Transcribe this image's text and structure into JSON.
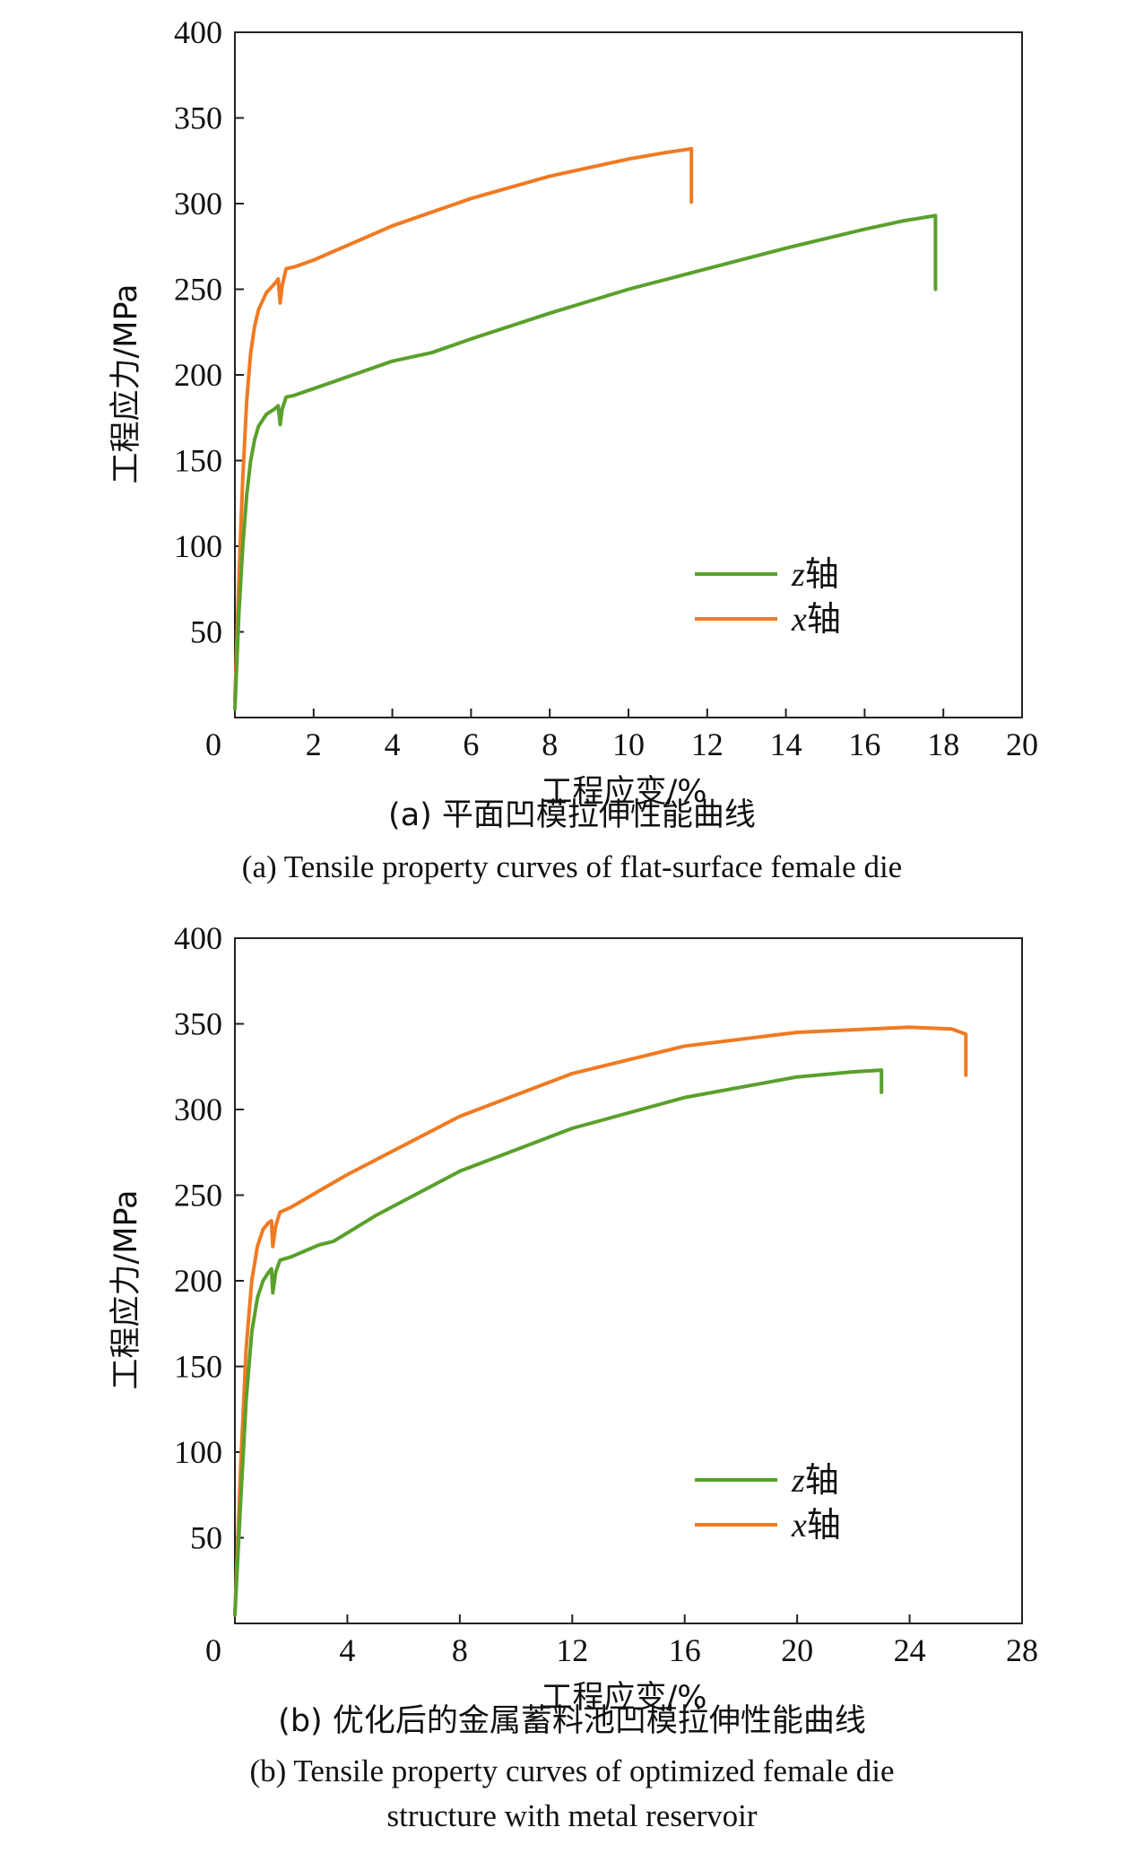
{
  "chart_data": [
    {
      "type": "line",
      "ylabel": "工程应力/MPa",
      "xlabel": "工程应变/%",
      "caption_zh": "(a) 平面凹模拉伸性能曲线",
      "caption_en": "(a) Tensile property curves of flat-surface female die",
      "xlim": [
        0,
        20
      ],
      "ylim": [
        0,
        400
      ],
      "xticks": [
        "0",
        "2",
        "4",
        "6",
        "8",
        "10",
        "12",
        "14",
        "16",
        "18",
        "20"
      ],
      "yticks": [
        "50",
        "100",
        "150",
        "200",
        "250",
        "300",
        "350",
        "400"
      ],
      "grid": false,
      "legend_position": "lower-right",
      "series": [
        {
          "name": "z轴",
          "axis_symbol": "z",
          "axis_suffix": "轴",
          "color": "#5aa02c",
          "points": [
            [
              0.0,
              5
            ],
            [
              0.1,
              60
            ],
            [
              0.2,
              100
            ],
            [
              0.3,
              130
            ],
            [
              0.4,
              150
            ],
            [
              0.5,
              162
            ],
            [
              0.6,
              170
            ],
            [
              0.8,
              177
            ],
            [
              1.0,
              180
            ],
            [
              1.1,
              182
            ],
            [
              1.15,
              171
            ],
            [
              1.2,
              180
            ],
            [
              1.3,
              187
            ],
            [
              1.5,
              188
            ],
            [
              2.0,
              192
            ],
            [
              3.0,
              200
            ],
            [
              4.0,
              208
            ],
            [
              5.0,
              213
            ],
            [
              6.0,
              221
            ],
            [
              8.0,
              236
            ],
            [
              10.0,
              250
            ],
            [
              12.0,
              262
            ],
            [
              14.0,
              274
            ],
            [
              16.0,
              285
            ],
            [
              17.0,
              290
            ],
            [
              17.8,
              293
            ],
            [
              17.8,
              250
            ]
          ]
        },
        {
          "name": "x轴",
          "axis_symbol": "x",
          "axis_suffix": "轴",
          "color": "#f07a22",
          "points": [
            [
              0.0,
              10
            ],
            [
              0.1,
              80
            ],
            [
              0.2,
              140
            ],
            [
              0.3,
              185
            ],
            [
              0.4,
              213
            ],
            [
              0.5,
              228
            ],
            [
              0.6,
              238
            ],
            [
              0.8,
              248
            ],
            [
              1.0,
              253
            ],
            [
              1.1,
              256
            ],
            [
              1.15,
              242
            ],
            [
              1.2,
              252
            ],
            [
              1.3,
              262
            ],
            [
              1.5,
              263
            ],
            [
              2.0,
              267
            ],
            [
              3.0,
              277
            ],
            [
              4.0,
              287
            ],
            [
              6.0,
              303
            ],
            [
              8.0,
              316
            ],
            [
              10.0,
              326
            ],
            [
              11.0,
              330
            ],
            [
              11.6,
              332
            ],
            [
              11.6,
              301
            ]
          ]
        }
      ]
    },
    {
      "type": "line",
      "ylabel": "工程应力/MPa",
      "xlabel": "工程应变/%",
      "caption_zh": "(b) 优化后的金属蓄料池凹模拉伸性能曲线",
      "caption_en_lines": [
        "(b) Tensile property curves of optimized female die",
        "structure with metal reservoir"
      ],
      "xlim": [
        0,
        28
      ],
      "ylim": [
        0,
        400
      ],
      "xticks": [
        "0",
        "4",
        "8",
        "12",
        "16",
        "20",
        "24",
        "28"
      ],
      "yticks": [
        "50",
        "100",
        "150",
        "200",
        "250",
        "300",
        "350",
        "400"
      ],
      "grid": false,
      "legend_position": "lower-right",
      "series": [
        {
          "name": "z轴",
          "axis_symbol": "z",
          "axis_suffix": "轴",
          "color": "#5aa02c",
          "points": [
            [
              0.0,
              5
            ],
            [
              0.2,
              70
            ],
            [
              0.4,
              130
            ],
            [
              0.6,
              170
            ],
            [
              0.8,
              190
            ],
            [
              1.0,
              200
            ],
            [
              1.2,
              205
            ],
            [
              1.3,
              207
            ],
            [
              1.35,
              193
            ],
            [
              1.45,
              205
            ],
            [
              1.6,
              212
            ],
            [
              2.0,
              214
            ],
            [
              3.0,
              221
            ],
            [
              3.5,
              223
            ],
            [
              5.0,
              238
            ],
            [
              8.0,
              264
            ],
            [
              12.0,
              289
            ],
            [
              16.0,
              307
            ],
            [
              20.0,
              319
            ],
            [
              22.0,
              322
            ],
            [
              23.0,
              323
            ],
            [
              23.0,
              310
            ]
          ]
        },
        {
          "name": "x轴",
          "axis_symbol": "x",
          "axis_suffix": "轴",
          "color": "#f07a22",
          "points": [
            [
              0.0,
              5
            ],
            [
              0.2,
              90
            ],
            [
              0.4,
              160
            ],
            [
              0.6,
              200
            ],
            [
              0.8,
              220
            ],
            [
              1.0,
              230
            ],
            [
              1.2,
              234
            ],
            [
              1.3,
              235
            ],
            [
              1.35,
              220
            ],
            [
              1.45,
              232
            ],
            [
              1.6,
              240
            ],
            [
              2.0,
              243
            ],
            [
              4.0,
              262
            ],
            [
              8.0,
              296
            ],
            [
              12.0,
              321
            ],
            [
              16.0,
              337
            ],
            [
              20.0,
              345
            ],
            [
              24.0,
              348
            ],
            [
              25.5,
              347
            ],
            [
              26.0,
              344
            ],
            [
              26.0,
              320
            ]
          ]
        }
      ]
    }
  ]
}
